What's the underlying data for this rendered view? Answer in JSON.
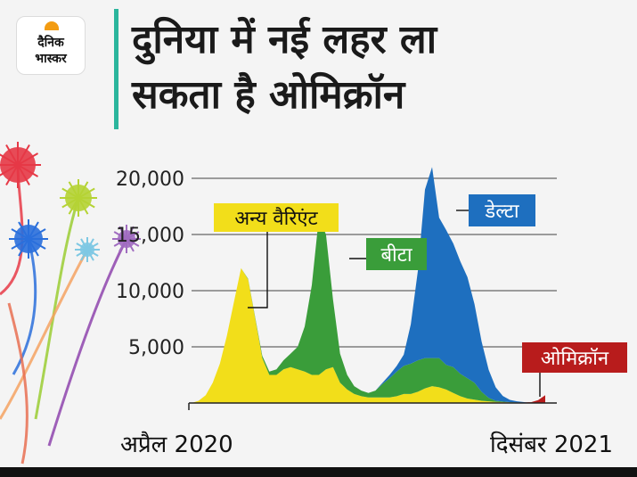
{
  "brand": {
    "line1": "दैनिक",
    "line2": "भास्कर"
  },
  "headline": {
    "line1": "दुनिया में नई लहर ला",
    "line2": "सकता है ओमिक्रॉन"
  },
  "colors": {
    "accent_bar": "#2bb59c",
    "other": "#f2de1a",
    "beta": "#3a9d3a",
    "delta": "#1e6fbf",
    "omicron": "#b81c1c"
  },
  "chart_data": {
    "type": "area",
    "stacked": true,
    "ylim": [
      0,
      20000
    ],
    "yticks": [
      "20,000",
      "15,000",
      "10,000",
      "5,000"
    ],
    "ytick_values": [
      20000,
      15000,
      10000,
      5000
    ],
    "xlabels": [
      "अप्रैल 2020",
      "दिसंबर 2021"
    ],
    "grid": true,
    "x": [
      0,
      2,
      4,
      6,
      8,
      10,
      12,
      14,
      16,
      18,
      20,
      22,
      24,
      26,
      28,
      30,
      32,
      34,
      36,
      38,
      40,
      42,
      44,
      46,
      48,
      50,
      52,
      54,
      56,
      58,
      60,
      62,
      64,
      66,
      68,
      70,
      72,
      74,
      76,
      78,
      80,
      82,
      84,
      86,
      88,
      90,
      92,
      94,
      96,
      98,
      100
    ],
    "series": [
      {
        "name": "अन्य वैरिएंट",
        "color_key": "other",
        "label": "अन्य वैरिएंट",
        "values": [
          0,
          200,
          700,
          1800,
          3500,
          6000,
          9000,
          12000,
          11000,
          7500,
          4000,
          2500,
          2500,
          3000,
          3200,
          3000,
          2800,
          2500,
          2500,
          3000,
          3200,
          1800,
          1200,
          800,
          600,
          500,
          500,
          500,
          500,
          600,
          800,
          800,
          1000,
          1300,
          1500,
          1400,
          1200,
          900,
          600,
          400,
          300,
          200,
          150,
          100,
          80,
          60,
          40,
          30,
          20,
          10,
          0
        ]
      },
      {
        "name": "बीटा",
        "color_key": "beta",
        "values": [
          0,
          0,
          0,
          0,
          0,
          0,
          0,
          0,
          50,
          100,
          200,
          300,
          500,
          800,
          1200,
          2000,
          4000,
          8000,
          14000,
          12000,
          6000,
          2600,
          1300,
          700,
          500,
          400,
          600,
          1200,
          1700,
          2200,
          2500,
          2700,
          2800,
          2700,
          2500,
          2600,
          2200,
          2300,
          2000,
          1800,
          1500,
          800,
          300,
          100,
          50,
          20,
          10,
          0,
          0,
          0,
          0
        ]
      },
      {
        "name": "डेल्टा",
        "color_key": "delta",
        "values": [
          0,
          0,
          0,
          0,
          0,
          0,
          0,
          0,
          0,
          0,
          0,
          0,
          0,
          0,
          0,
          0,
          0,
          0,
          0,
          0,
          0,
          0,
          0,
          0,
          0,
          0,
          0,
          100,
          300,
          500,
          1000,
          3500,
          8000,
          15000,
          17000,
          12500,
          12000,
          11000,
          10000,
          9000,
          7000,
          4500,
          2500,
          1200,
          500,
          200,
          100,
          50,
          0,
          0,
          0
        ]
      },
      {
        "name": "ओमिक्रॉन",
        "color_key": "omicron",
        "values": [
          0,
          0,
          0,
          0,
          0,
          0,
          0,
          0,
          0,
          0,
          0,
          0,
          0,
          0,
          0,
          0,
          0,
          0,
          0,
          0,
          0,
          0,
          0,
          0,
          0,
          0,
          0,
          0,
          0,
          0,
          0,
          0,
          0,
          0,
          0,
          0,
          0,
          0,
          0,
          0,
          0,
          0,
          0,
          0,
          0,
          0,
          0,
          0,
          50,
          250,
          700
        ]
      }
    ],
    "labels": [
      {
        "series": "अन्य वैरिएंट",
        "text": "अन्य वैरिएंट"
      },
      {
        "series": "बीटा",
        "text": "बीटा"
      },
      {
        "series": "डेल्टा",
        "text": "डेल्टा"
      },
      {
        "series": "ओमिक्रॉन",
        "text": "ओमिक्रॉन"
      }
    ]
  }
}
